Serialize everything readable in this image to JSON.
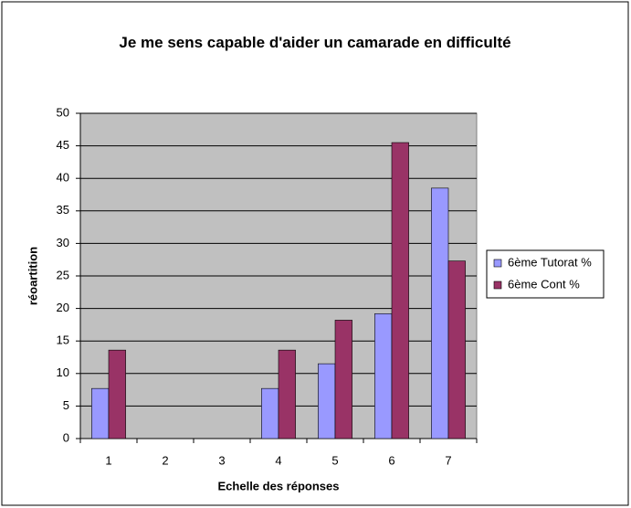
{
  "chart_data": {
    "type": "bar",
    "title": "Je me sens capable d'aider un camarade en difficulté",
    "x_label": "Echelle des réponses",
    "y_label": "réoartition",
    "categories": [
      "1",
      "2",
      "3",
      "4",
      "5",
      "6",
      "7"
    ],
    "series": [
      {
        "name": "6ème Tutorat %",
        "color": "#9999ff",
        "values": [
          7.7,
          0,
          0,
          7.7,
          11.5,
          19.2,
          38.5
        ]
      },
      {
        "name": "6ème Cont %",
        "color": "#993366",
        "values": [
          13.6,
          0,
          0,
          13.6,
          18.2,
          45.5,
          27.3
        ]
      }
    ],
    "ylim": [
      0,
      50
    ],
    "yticks": [
      0,
      5,
      10,
      15,
      20,
      25,
      30,
      35,
      40,
      45,
      50
    ],
    "grid": true,
    "legend": "right"
  }
}
